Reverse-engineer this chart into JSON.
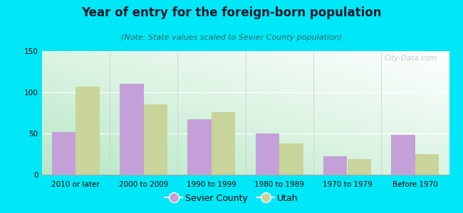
{
  "categories": [
    "2010 or later",
    "2000 to 2009",
    "1990 to 1999",
    "1980 to 1989",
    "1970 to 1979",
    "Before 1970"
  ],
  "sevier_values": [
    52,
    110,
    67,
    50,
    22,
    48
  ],
  "utah_values": [
    107,
    85,
    76,
    38,
    19,
    25
  ],
  "sevier_color": "#c49fd8",
  "utah_color": "#c8d49a",
  "title": "Year of entry for the foreign-born population",
  "subtitle": "(Note: State values scaled to Sevier County population)",
  "legend_sevier": "Sevier County",
  "legend_utah": "Utah",
  "ylim": [
    0,
    150
  ],
  "yticks": [
    0,
    50,
    100,
    150
  ],
  "background_outer": "#00e8f8",
  "title_fontsize": 12,
  "subtitle_fontsize": 8,
  "tick_fontsize": 7.5,
  "legend_fontsize": 9,
  "bar_width": 0.35,
  "watermark_text": "City-Data.com"
}
